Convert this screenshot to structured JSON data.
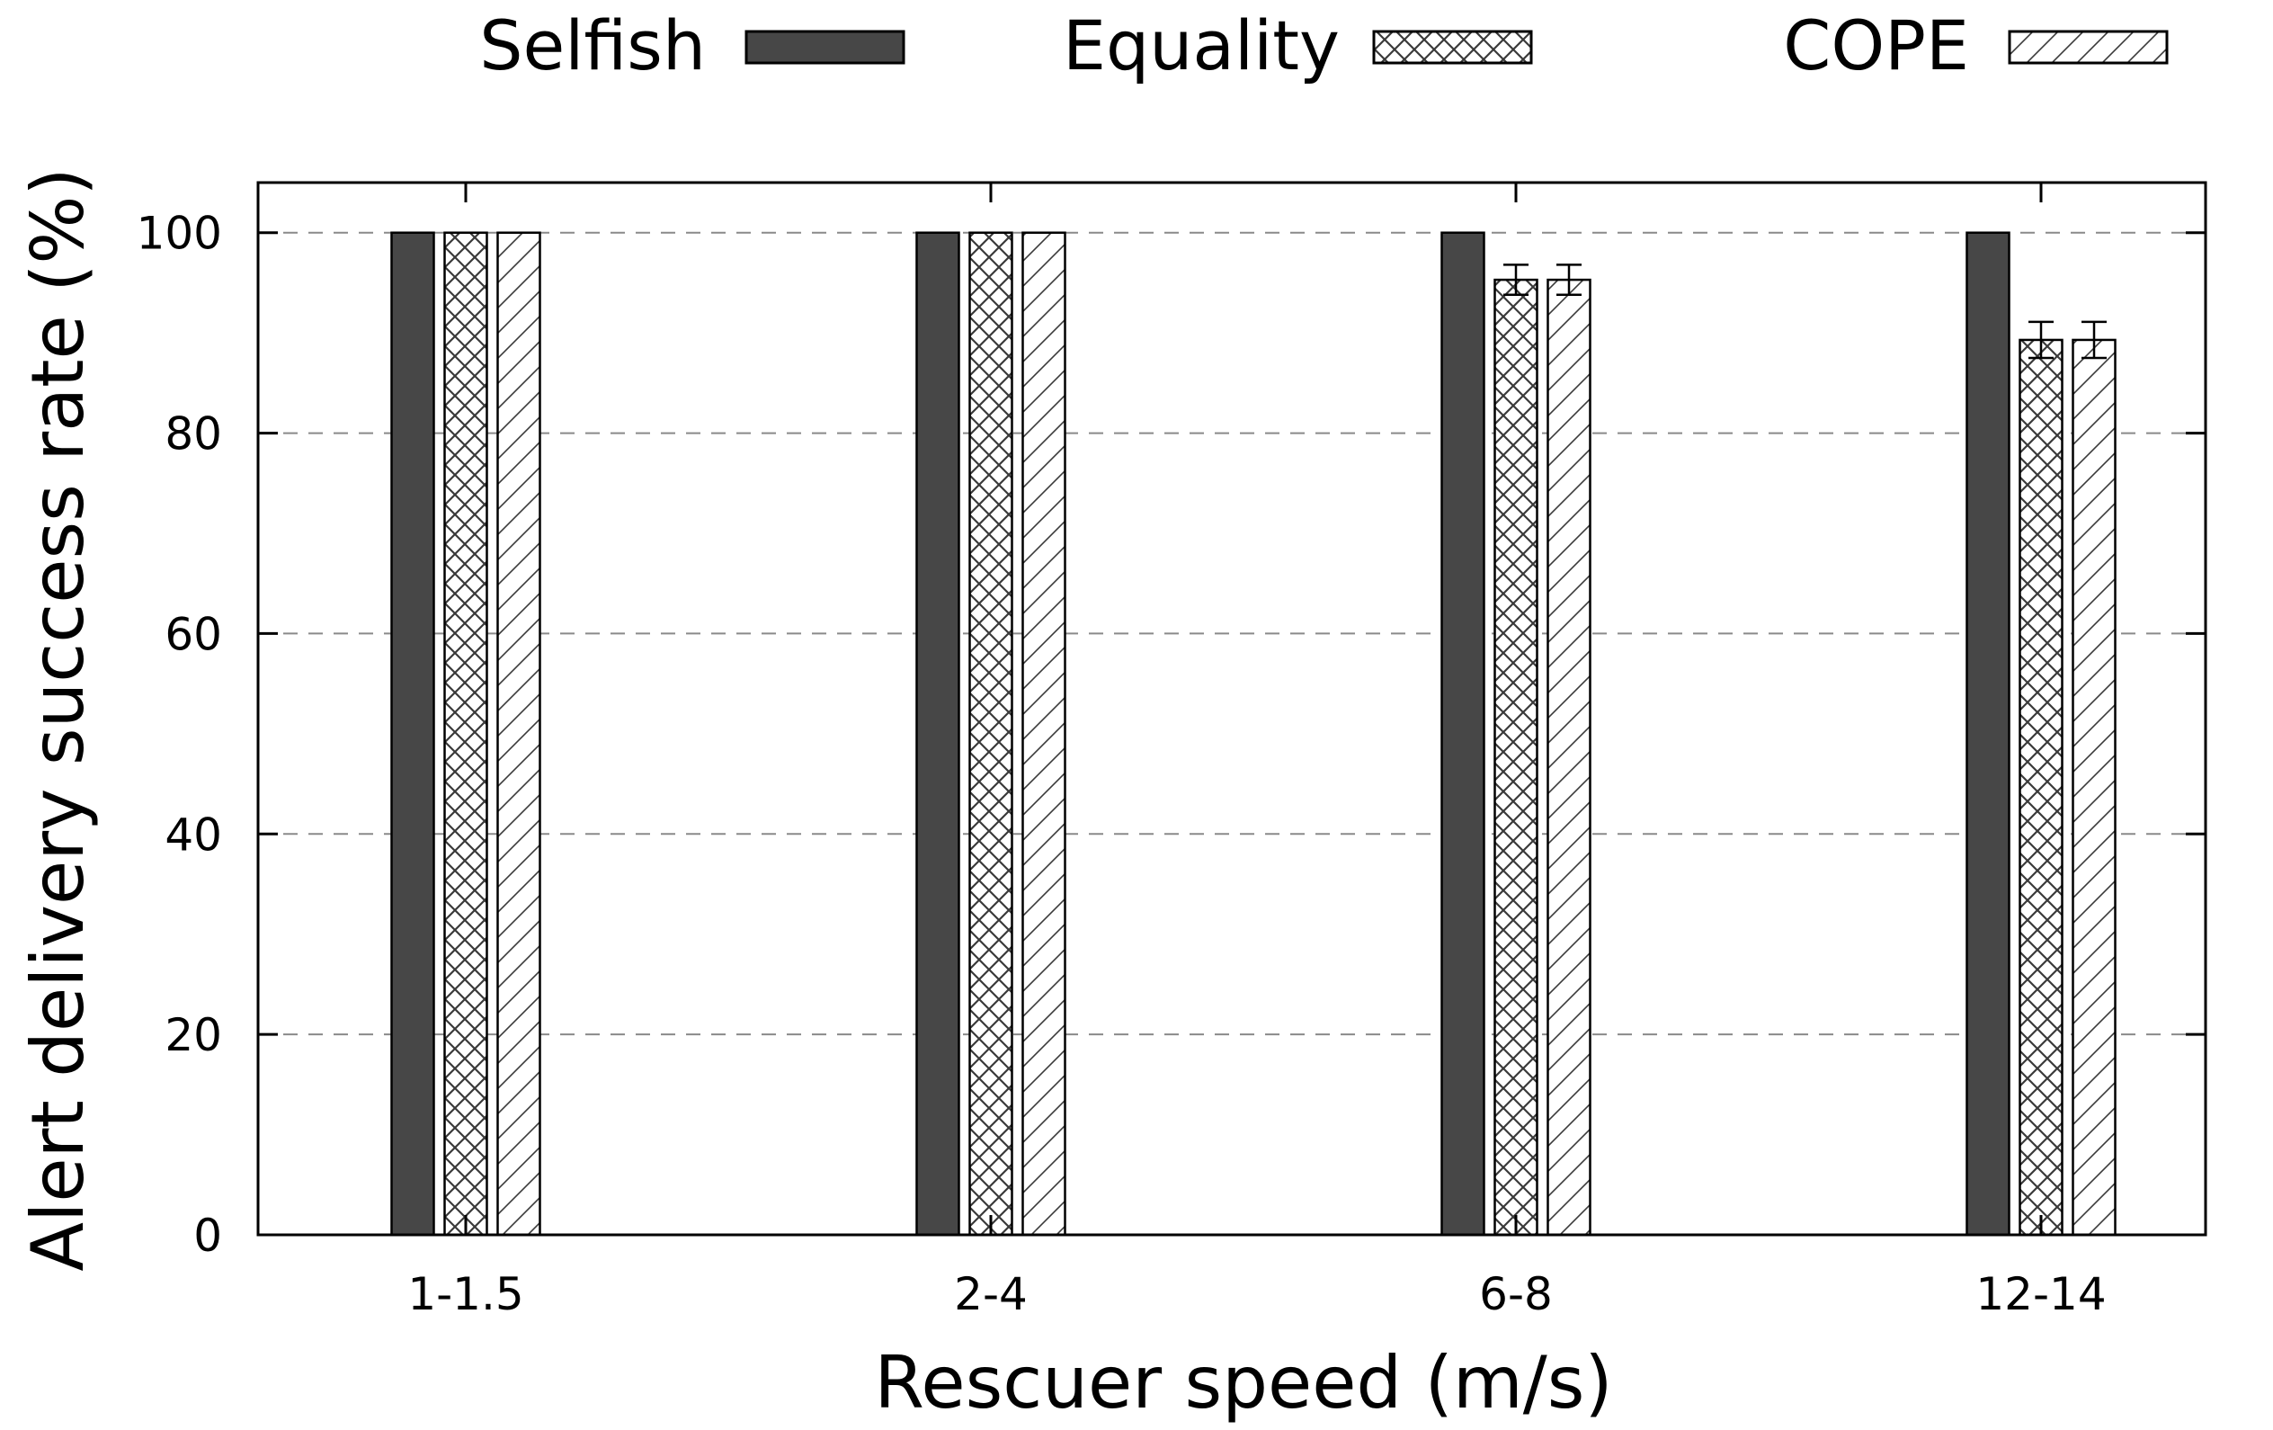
{
  "chart_data": {
    "type": "bar",
    "title": "",
    "xlabel": "Rescuer speed (m/s)",
    "ylabel": "Alert delivery success rate (%)",
    "categories": [
      "1-1.5",
      "2-4",
      "6-8",
      "12-14"
    ],
    "ylim": [
      0,
      105
    ],
    "yticks": [
      0,
      20,
      40,
      60,
      80,
      100
    ],
    "ytick_labels": [
      "0",
      "20",
      "40",
      "60",
      "80",
      "100"
    ],
    "grid": "horizontal dashed",
    "legend_position": "top",
    "series": [
      {
        "name": "Selfish",
        "pattern": "solid",
        "color": "#474747",
        "values": [
          100,
          100,
          100,
          100
        ],
        "errors": [
          0,
          0,
          0,
          0
        ]
      },
      {
        "name": "Equality",
        "pattern": "crosshatch",
        "color": "#474747",
        "values": [
          100,
          100,
          95.3,
          89.3
        ],
        "errors": [
          0,
          0,
          1.5,
          1.8
        ]
      },
      {
        "name": "COPE",
        "pattern": "diagonal",
        "color": "#474747",
        "values": [
          100,
          100,
          95.3,
          89.3
        ],
        "errors": [
          0,
          0,
          1.5,
          1.8
        ]
      }
    ]
  }
}
